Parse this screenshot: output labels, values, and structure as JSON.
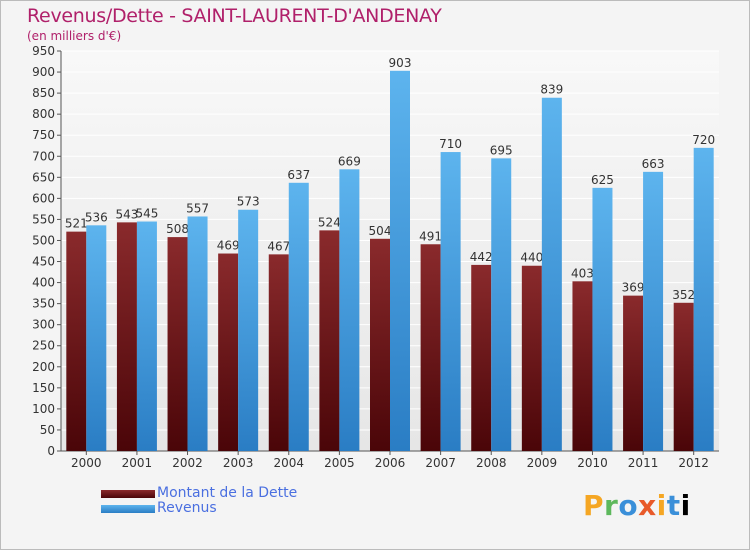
{
  "header": {
    "title": "Revenus/Dette - SAINT-LAURENT-D'ANDENAY",
    "subtitle": "(en milliers d'€)"
  },
  "legend": {
    "items": [
      "Montant de la Dette",
      "Revenus"
    ]
  },
  "logo": {
    "chars": [
      "P",
      "r",
      "o",
      "x",
      "i",
      "t",
      "i"
    ]
  },
  "colors": {
    "dette": "#7a1a1d",
    "revenus": "#4aa3e6",
    "title": "#b0206a"
  },
  "chart_data": {
    "type": "bar",
    "categories": [
      "2000",
      "2001",
      "2002",
      "2003",
      "2004",
      "2005",
      "2006",
      "2007",
      "2008",
      "2009",
      "2010",
      "2011",
      "2012"
    ],
    "series": [
      {
        "name": "Montant de la Dette",
        "values": [
          521,
          543,
          508,
          469,
          467,
          524,
          504,
          491,
          442,
          440,
          403,
          369,
          352
        ]
      },
      {
        "name": "Revenus",
        "values": [
          536,
          545,
          557,
          573,
          637,
          669,
          903,
          710,
          695,
          839,
          625,
          663,
          720
        ]
      }
    ],
    "title": "Revenus/Dette - SAINT-LAURENT-D'ANDENAY",
    "subtitle": "(en milliers d'€)",
    "ylim": [
      0,
      950
    ],
    "yticks": [
      0,
      50,
      100,
      150,
      200,
      250,
      300,
      350,
      400,
      450,
      500,
      550,
      600,
      650,
      700,
      750,
      800,
      850,
      900,
      950
    ],
    "grid": true,
    "legend_position": "bottom-left"
  }
}
